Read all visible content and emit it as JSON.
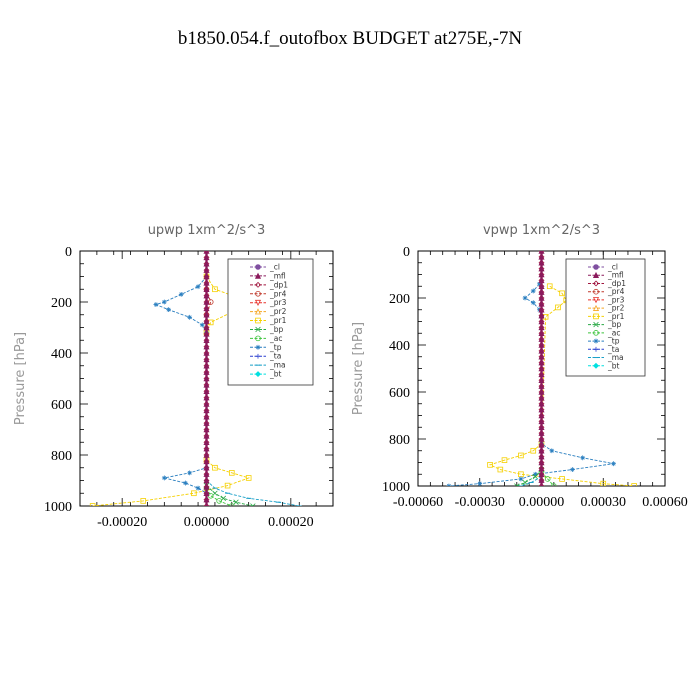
{
  "title": "b1850.054.f_outofbox  BUDGET at275E,-7N",
  "legend_items": [
    {
      "name": "_cl",
      "color": "#7f4fa0",
      "marker": "circle"
    },
    {
      "name": "_mfl",
      "color": "#8b1a5c",
      "marker": "triangle"
    },
    {
      "name": "_dp1",
      "color": "#a0153e",
      "marker": "diamond"
    },
    {
      "name": "_pr4",
      "color": "#c0392b",
      "marker": "circle-open"
    },
    {
      "name": "_pr3",
      "color": "#e8312a",
      "marker": "triangle-down"
    },
    {
      "name": "_pr2",
      "color": "#f5a623",
      "marker": "triangle-open"
    },
    {
      "name": "_pr1",
      "color": "#f5d000",
      "marker": "square-open"
    },
    {
      "name": "_bp",
      "color": "#27a844",
      "marker": "x"
    },
    {
      "name": "_ac",
      "color": "#3cc43c",
      "marker": "circle-open"
    },
    {
      "name": "_tp",
      "color": "#2a7fc0",
      "marker": "star"
    },
    {
      "name": "_ta",
      "color": "#2a3fd0",
      "marker": "plus"
    },
    {
      "name": "_ma",
      "color": "#1aa0c8",
      "marker": "dash"
    },
    {
      "name": "_bt",
      "color": "#00e0e0",
      "marker": "diamond-filled"
    }
  ],
  "chart_data": [
    {
      "type": "line",
      "title": "upwp   1xm^2/s^3",
      "ylabel": "Pressure [hPa]",
      "ylim": [
        1000,
        0
      ],
      "xlim": [
        -0.0003,
        0.0003
      ],
      "xticks": [
        -0.0002,
        0,
        0.0002
      ],
      "xtick_labels": [
        "-0.00020",
        "0.00000",
        "0.00020"
      ],
      "yticks": [
        0,
        200,
        400,
        600,
        800,
        1000
      ],
      "legend_placement": "top-right",
      "series": [
        {
          "name": "_pr1",
          "pressure": [
            100,
            150,
            180,
            210,
            240,
            280,
            320,
            820,
            850,
            870,
            890,
            920,
            950,
            980,
            1000
          ],
          "values": [
            0,
            2e-05,
            7e-05,
            0.0001,
            6e-05,
            1e-05,
            0,
            0,
            2e-05,
            6e-05,
            0.0001,
            5e-05,
            -3e-05,
            -0.00015,
            -0.00027
          ]
        },
        {
          "name": "_tp",
          "pressure": [
            100,
            140,
            170,
            200,
            210,
            230,
            260,
            290,
            320,
            850,
            870,
            890,
            910,
            930,
            950
          ],
          "values": [
            0,
            -2e-05,
            -6e-05,
            -0.0001,
            -0.00012,
            -9e-05,
            -4e-05,
            -1e-05,
            0,
            0,
            -4e-05,
            -0.0001,
            -5e-05,
            -2e-05,
            0
          ]
        },
        {
          "name": "_ma",
          "pressure": [
            900,
            930,
            950,
            970,
            985,
            1000
          ],
          "values": [
            0,
            2e-05,
            5e-05,
            0.0001,
            0.00017,
            0.00022
          ]
        },
        {
          "name": "_bp",
          "pressure": [
            920,
            950,
            970,
            985,
            1000
          ],
          "values": [
            0,
            2e-05,
            4e-05,
            7e-05,
            0.00011
          ]
        },
        {
          "name": "_ac",
          "pressure": [
            930,
            960,
            980,
            1000
          ],
          "values": [
            0,
            1e-05,
            3e-05,
            6e-05
          ]
        },
        {
          "name": "_pr4",
          "pressure": [
            150,
            200,
            250
          ],
          "values": [
            0,
            1e-05,
            0
          ]
        },
        {
          "name": "_dp1",
          "pressure": [
            0,
            1000
          ],
          "values": [
            0,
            0
          ]
        },
        {
          "name": "_mfl",
          "pressure": [
            0,
            1000
          ],
          "values": [
            0,
            0
          ]
        }
      ]
    },
    {
      "type": "line",
      "title": "vpwp   1xm^2/s^3",
      "ylabel": "Pressure [hPa]",
      "ylim": [
        1000,
        0
      ],
      "xlim": [
        -0.0006,
        0.0006
      ],
      "xticks": [
        -0.0006,
        -0.0003,
        0,
        0.0003,
        0.0006
      ],
      "xtick_labels": [
        "-0.00060",
        "-0.00030",
        "0.00000",
        "0.00030",
        "0.00060"
      ],
      "yticks": [
        0,
        200,
        400,
        600,
        800,
        1000
      ],
      "legend_placement": "top-right",
      "series": [
        {
          "name": "_pr1",
          "pressure": [
            150,
            180,
            210,
            240,
            280,
            820,
            850,
            870,
            890,
            910,
            930,
            950,
            970,
            990,
            1000
          ],
          "values": [
            4e-05,
            0.0001,
            0.00012,
            8e-05,
            2e-05,
            0,
            -4e-05,
            -0.0001,
            -0.00018,
            -0.00025,
            -0.0002,
            -0.0001,
            0.0001,
            0.0003,
            0.00045
          ]
        },
        {
          "name": "_tp",
          "pressure": [
            140,
            170,
            200,
            220,
            250,
            280,
            820,
            850,
            880,
            905,
            930,
            950,
            970,
            990,
            1000
          ],
          "values": [
            -1e-05,
            -4e-05,
            -8e-05,
            -4e-05,
            -1e-05,
            0,
            0,
            5e-05,
            0.0002,
            0.00035,
            0.00015,
            -3e-05,
            -0.0001,
            -0.0003,
            -0.00045
          ]
        },
        {
          "name": "_bp",
          "pressure": [
            930,
            960,
            985,
            1000
          ],
          "values": [
            0,
            -3e-05,
            -8e-05,
            -0.00012
          ]
        },
        {
          "name": "_ac",
          "pressure": [
            940,
            970,
            1000
          ],
          "values": [
            0,
            3e-05,
            6e-05
          ]
        },
        {
          "name": "_ma",
          "pressure": [
            960,
            985,
            1000
          ],
          "values": [
            0,
            -5e-05,
            -0.0001
          ]
        },
        {
          "name": "_dp1",
          "pressure": [
            0,
            1000
          ],
          "values": [
            0,
            0
          ]
        },
        {
          "name": "_mfl",
          "pressure": [
            0,
            1000
          ],
          "values": [
            0,
            0
          ]
        }
      ]
    }
  ]
}
